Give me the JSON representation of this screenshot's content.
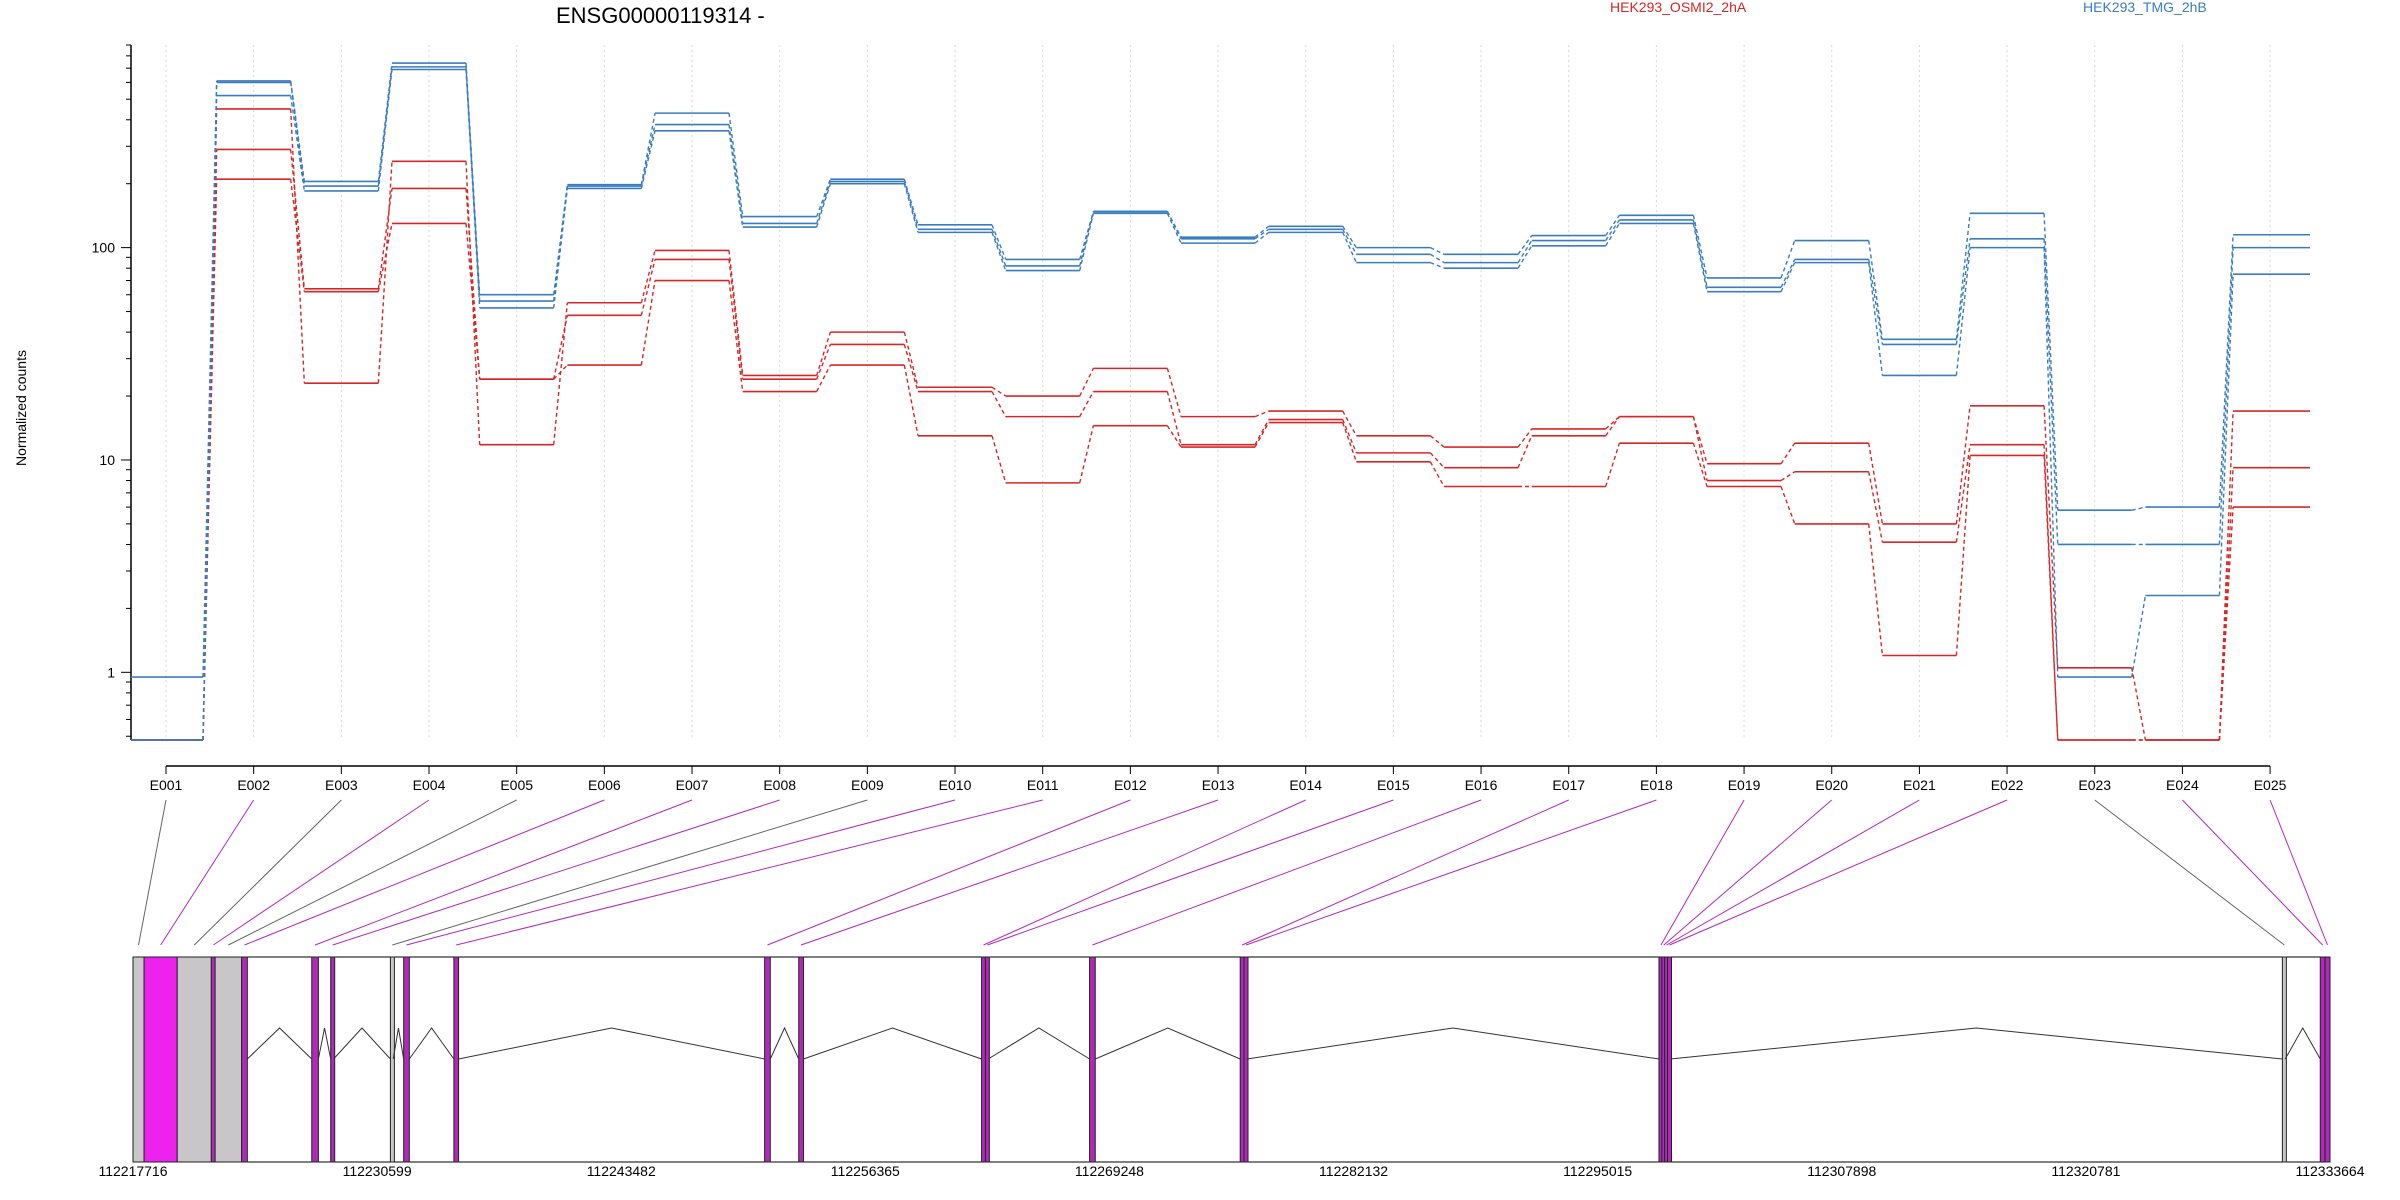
{
  "chart_data": {
    "type": "line",
    "title": "ENSG00000119314 -",
    "ylabel": "Normalized counts",
    "xlabel": "",
    "yscale": "log",
    "ylim": [
      0.48,
      900
    ],
    "yticks": [
      1,
      10,
      100
    ],
    "ytick_labels": [
      "1",
      "10",
      "100"
    ],
    "grid": "vertical-dotted",
    "legend_position": "top",
    "legend": [
      {
        "name": "HEK293_OSMI2_2hA",
        "color": "#d62728"
      },
      {
        "name": "HEK293_TMG_2hB",
        "color": "#3a7dbf"
      }
    ],
    "categories": [
      "E001",
      "E002",
      "E003",
      "E004",
      "E005",
      "E006",
      "E007",
      "E008",
      "E009",
      "E010",
      "E011",
      "E012",
      "E013",
      "E014",
      "E015",
      "E016",
      "E017",
      "E018",
      "E019",
      "E020",
      "E021",
      "E022",
      "E023",
      "E024",
      "E025"
    ],
    "series": [
      {
        "group": "HEK293_OSMI2_2hA",
        "color": "#d62728",
        "values": [
          0.48,
          210,
          62,
          130,
          24,
          28,
          70,
          21,
          28,
          13,
          7.8,
          14.5,
          11.5,
          15,
          9.8,
          7.5,
          7.5,
          12,
          7.5,
          5,
          1.2,
          10.5,
          0.48,
          0.48,
          6
        ]
      },
      {
        "group": "HEK293_OSMI2_2hA",
        "color": "#d62728",
        "values": [
          0.48,
          290,
          64,
          190,
          24,
          48,
          88,
          24,
          35,
          21,
          16,
          21,
          11.8,
          15.5,
          10.8,
          9.2,
          13,
          16,
          8,
          8.8,
          4.1,
          11.8,
          0.48,
          0.48,
          9.2
        ]
      },
      {
        "group": "HEK293_OSMI2_2hA",
        "color": "#d62728",
        "values": [
          0.48,
          450,
          23,
          255,
          11.8,
          55,
          97,
          25,
          40,
          22,
          20,
          27,
          16,
          17,
          13,
          11.5,
          14,
          16,
          9.6,
          12,
          5,
          18,
          1.05,
          0.48,
          17
        ]
      },
      {
        "group": "HEK293_TMG_2hB",
        "color": "#3a7dbf",
        "values": [
          0.48,
          520,
          185,
          690,
          52,
          190,
          355,
          125,
          200,
          118,
          78,
          145,
          105,
          118,
          85,
          80,
          102,
          130,
          62,
          85,
          25,
          100,
          0.95,
          2.3,
          75
        ]
      },
      {
        "group": "HEK293_TMG_2hB",
        "color": "#3a7dbf",
        "values": [
          0.48,
          600,
          195,
          710,
          56,
          195,
          380,
          130,
          205,
          122,
          82,
          148,
          110,
          122,
          93,
          85,
          108,
          135,
          65,
          88,
          35,
          110,
          4,
          4,
          100
        ]
      },
      {
        "group": "HEK293_TMG_2hB",
        "color": "#3a7dbf",
        "values": [
          0.95,
          610,
          205,
          740,
          60,
          198,
          430,
          140,
          210,
          128,
          88,
          148,
          112,
          126,
          100,
          93,
          114,
          142,
          72,
          108,
          37,
          145,
          5.8,
          6,
          115
        ]
      }
    ],
    "genome": {
      "coordinate_labels": [
        "112217716",
        "112230599",
        "112243482",
        "112256365",
        "112269248",
        "112282132",
        "112295015",
        "112307898",
        "112320781",
        "112333664"
      ],
      "range": [
        112217716,
        112333664
      ],
      "exons": [
        {
          "id": "E001",
          "start": 112217716,
          "end": 112218300,
          "significant": false
        },
        {
          "id": "E002",
          "start": 112218300,
          "end": 112220050,
          "significant": true
        },
        {
          "id": "E003",
          "start": 112220050,
          "end": 112221850,
          "significant": false
        },
        {
          "id": "E004",
          "start": 112221850,
          "end": 112222050,
          "significant": true
        },
        {
          "id": "E005",
          "start": 112222050,
          "end": 112223450,
          "significant": false
        },
        {
          "id": "E006",
          "start": 112223450,
          "end": 112223750,
          "significant": true
        },
        {
          "id": "E007",
          "start": 112227150,
          "end": 112227500,
          "significant": true
        },
        {
          "id": "E008",
          "start": 112228150,
          "end": 112228300,
          "significant": true
        },
        {
          "id": "E009",
          "start": 112231300,
          "end": 112231450,
          "significant": false
        },
        {
          "id": "E010",
          "start": 112232000,
          "end": 112232300,
          "significant": true
        },
        {
          "id": "E011",
          "start": 112234650,
          "end": 112234900,
          "significant": true
        },
        {
          "id": "E012",
          "start": 112251050,
          "end": 112251350,
          "significant": true
        },
        {
          "id": "E013",
          "start": 112252850,
          "end": 112253100,
          "significant": true
        },
        {
          "id": "E014",
          "start": 112262500,
          "end": 112262700,
          "significant": true
        },
        {
          "id": "E015",
          "start": 112262700,
          "end": 112262850,
          "significant": true
        },
        {
          "id": "E016",
          "start": 112268200,
          "end": 112268500,
          "significant": true
        },
        {
          "id": "E017",
          "start": 112276150,
          "end": 112276350,
          "significant": true
        },
        {
          "id": "E018",
          "start": 112276350,
          "end": 112276500,
          "significant": true
        },
        {
          "id": "E019",
          "start": 112298250,
          "end": 112298400,
          "significant": true
        },
        {
          "id": "E020",
          "start": 112298400,
          "end": 112298550,
          "significant": true
        },
        {
          "id": "E021",
          "start": 112298550,
          "end": 112298700,
          "significant": true
        },
        {
          "id": "E022",
          "start": 112298700,
          "end": 112298850,
          "significant": true
        },
        {
          "id": "E023",
          "start": 112331150,
          "end": 112331300,
          "significant": false
        },
        {
          "id": "E024",
          "start": 112333150,
          "end": 112333400,
          "significant": true
        },
        {
          "id": "E025",
          "start": 112333400,
          "end": 112333664,
          "significant": true
        }
      ]
    }
  }
}
